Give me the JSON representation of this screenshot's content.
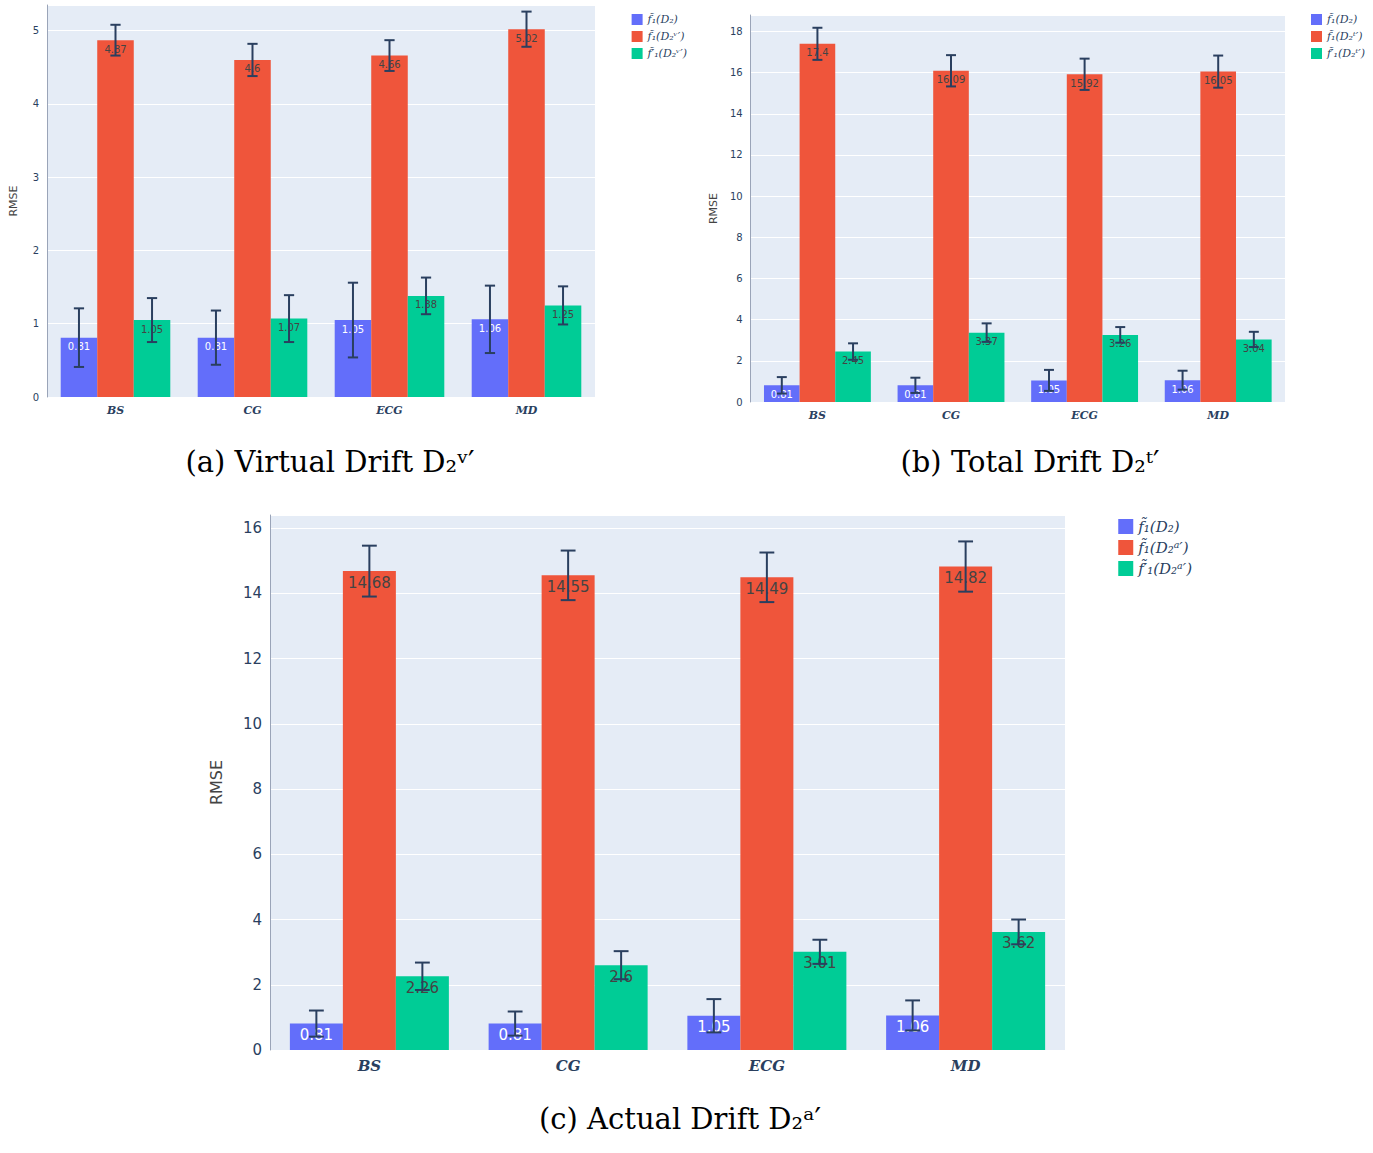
{
  "chart_data": [
    {
      "type": "bar",
      "title": "(a) Virtual Drift D₂ᵛ′",
      "y_label": "RMSE",
      "categories": [
        "BS",
        "CG",
        "ECG",
        "MD"
      ],
      "series": [
        {
          "name": "f̃₁(D₂)",
          "color": "#636efa",
          "values": [
            0.81,
            0.81,
            1.05,
            1.06
          ],
          "errors": [
            0.4,
            0.37,
            0.51,
            0.46
          ]
        },
        {
          "name": "f̃₁(D₂ᵛ′)",
          "color": "#ef553b",
          "values": [
            4.87,
            4.6,
            4.66,
            5.02
          ],
          "errors": [
            0.21,
            0.22,
            0.21,
            0.24
          ]
        },
        {
          "name": "f̃′₁(D₂ᵛ′)",
          "color": "#00cc96",
          "values": [
            1.05,
            1.07,
            1.38,
            1.25
          ],
          "errors": [
            0.3,
            0.32,
            0.25,
            0.26
          ]
        }
      ],
      "ylim": [
        0,
        5.35
      ],
      "yticks": [
        0,
        1,
        2,
        3,
        4,
        5
      ],
      "grid": true,
      "data_labels": true,
      "legend": "top-right"
    },
    {
      "type": "bar",
      "title": "(b) Total Drift D₂ᵗ′",
      "y_label": "RMSE",
      "categories": [
        "BS",
        "CG",
        "ECG",
        "MD"
      ],
      "series": [
        {
          "name": "f̃₁(D₂)",
          "color": "#636efa",
          "values": [
            0.81,
            0.81,
            1.05,
            1.06
          ],
          "errors": [
            0.4,
            0.37,
            0.51,
            0.46
          ]
        },
        {
          "name": "f̃₁(D₂ᵗ′)",
          "color": "#ef553b",
          "values": [
            17.4,
            16.09,
            15.92,
            16.05
          ],
          "errors": [
            0.78,
            0.76,
            0.76,
            0.78
          ]
        },
        {
          "name": "f̃′₁(D₂ᵗ′)",
          "color": "#00cc96",
          "values": [
            2.45,
            3.37,
            3.26,
            3.04
          ],
          "errors": [
            0.4,
            0.45,
            0.38,
            0.37
          ]
        }
      ],
      "ylim": [
        0,
        18.8
      ],
      "yticks": [
        0,
        2,
        4,
        6,
        8,
        10,
        12,
        14,
        16,
        18
      ],
      "grid": true,
      "data_labels": true,
      "legend": "top-right"
    },
    {
      "type": "bar",
      "title": "(c) Actual Drift D₂ᵃ′",
      "y_label": "RMSE",
      "categories": [
        "BS",
        "CG",
        "ECG",
        "MD"
      ],
      "series": [
        {
          "name": "f̃₁(D₂)",
          "color": "#636efa",
          "values": [
            0.81,
            0.81,
            1.05,
            1.06
          ],
          "errors": [
            0.4,
            0.37,
            0.51,
            0.46
          ]
        },
        {
          "name": "f̃₁(D₂ᵃ′)",
          "color": "#ef553b",
          "values": [
            14.68,
            14.55,
            14.49,
            14.82
          ],
          "errors": [
            0.78,
            0.76,
            0.76,
            0.77
          ]
        },
        {
          "name": "f̃′₁(D₂ᵃ′)",
          "color": "#00cc96",
          "values": [
            2.26,
            2.6,
            3.01,
            3.62
          ],
          "errors": [
            0.42,
            0.43,
            0.37,
            0.38
          ]
        }
      ],
      "ylim": [
        0,
        16.4
      ],
      "yticks": [
        0,
        2,
        4,
        6,
        8,
        10,
        12,
        14,
        16
      ],
      "grid": true,
      "data_labels": true,
      "legend": "top-right"
    }
  ]
}
